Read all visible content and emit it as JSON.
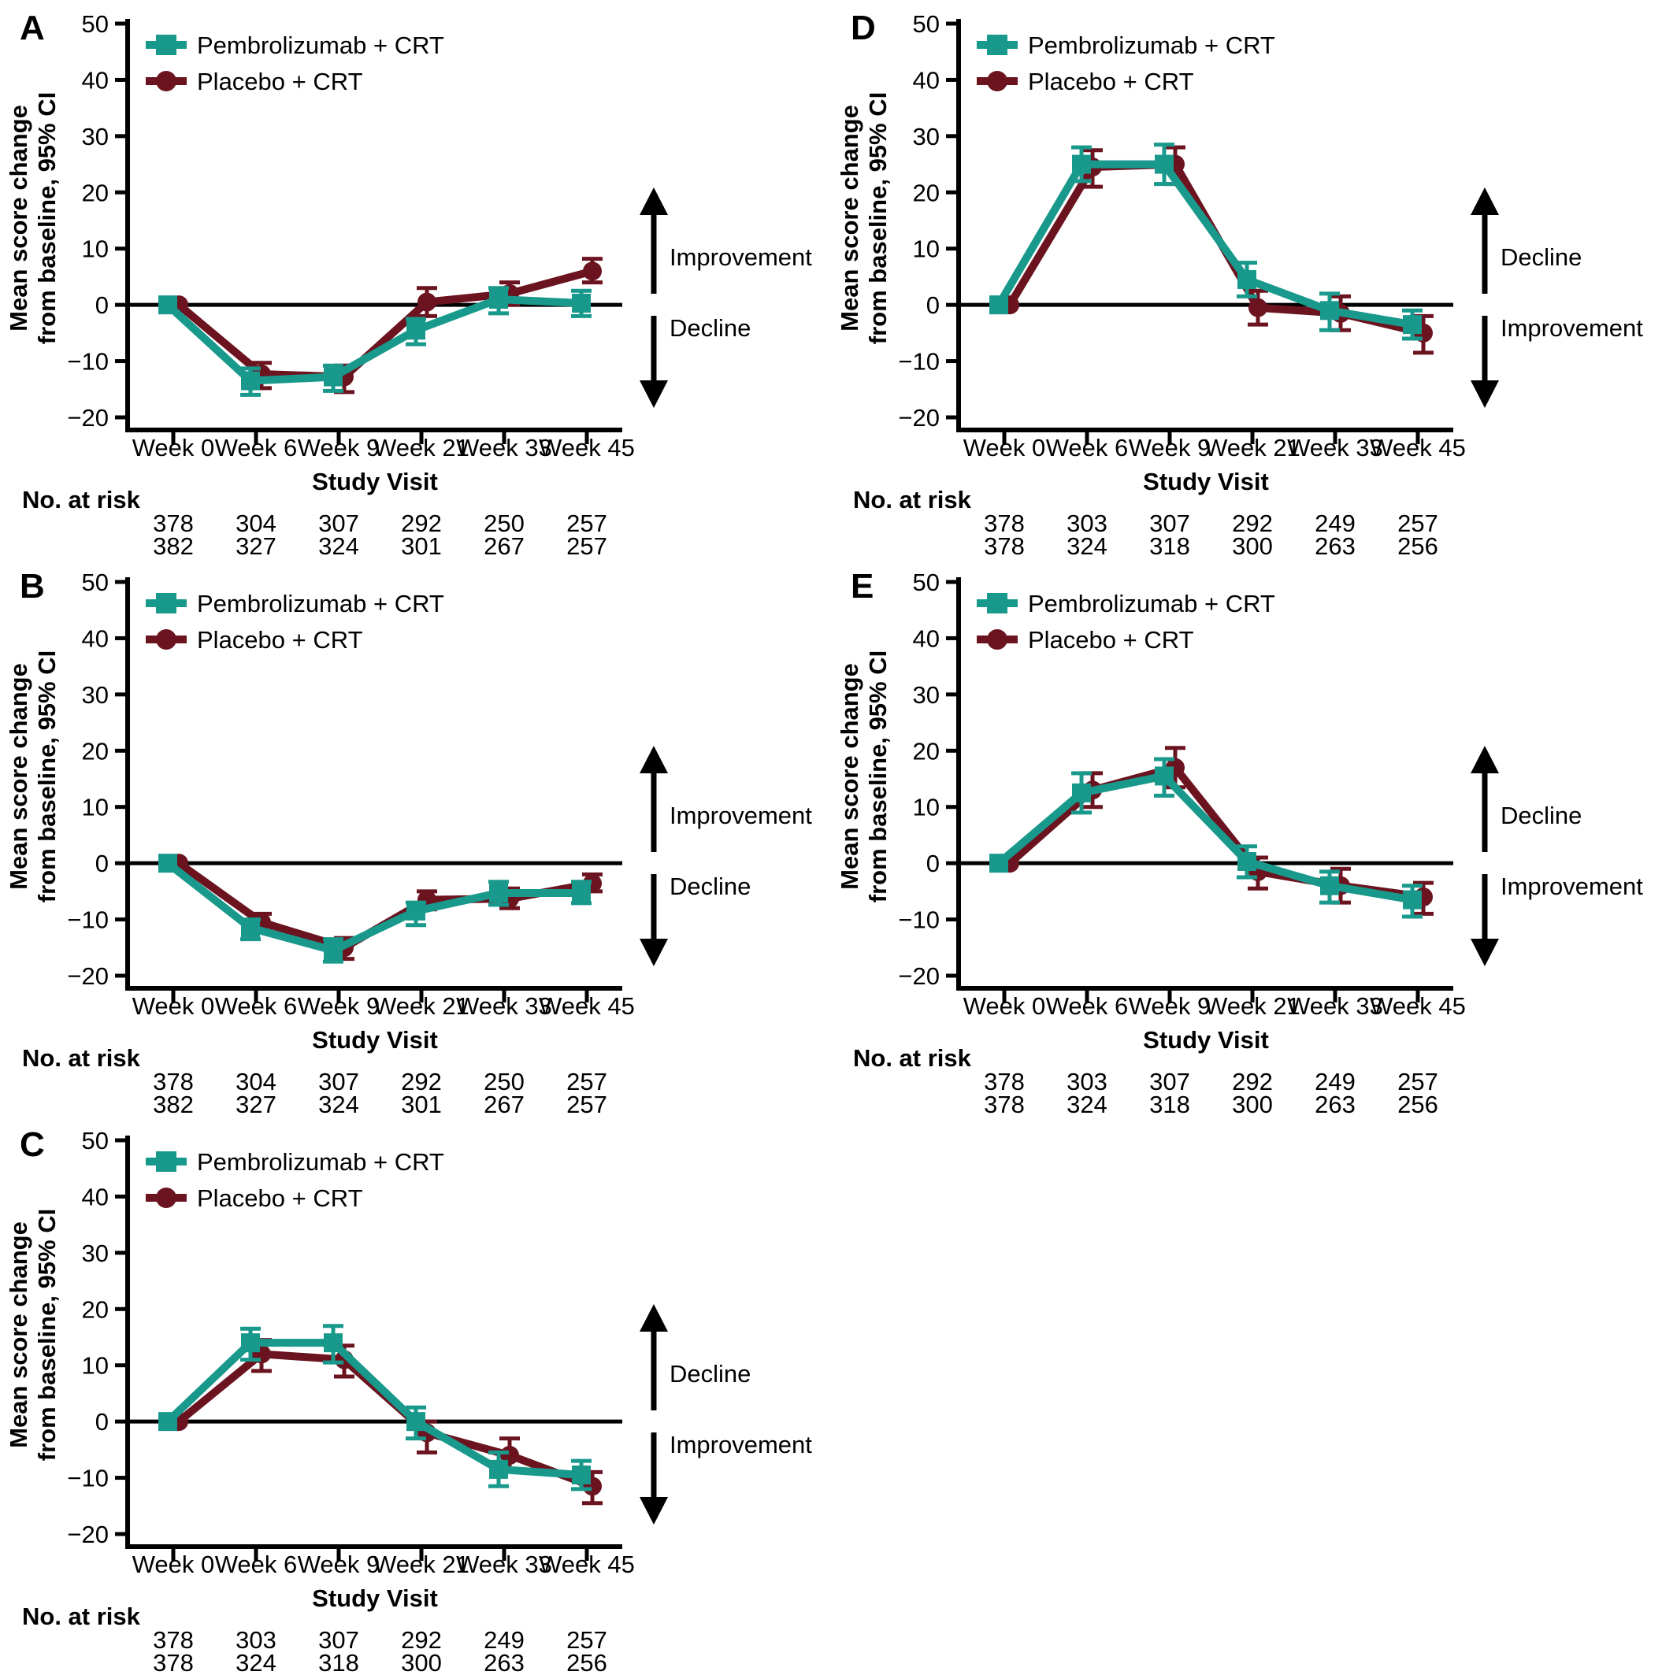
{
  "figure": {
    "ylabel_line1": "Mean score change",
    "ylabel_line2": "from baseline, 95% CI",
    "xlabel": "Study Visit",
    "no_at_risk_label": "No. at risk",
    "legend": [
      "Pembrolizumab + CRT",
      "Placebo + CRT"
    ],
    "colors": {
      "pembrolizumab": "#18998c",
      "placebo": "#6b1420",
      "axis": "#000000"
    },
    "categories": [
      "Week 0",
      "Week 6",
      "Week 9",
      "Week 21",
      "Week 33",
      "Week 45"
    ],
    "yticks": [
      50,
      40,
      30,
      20,
      10,
      0,
      -10,
      -20
    ],
    "ylim": [
      -20,
      50
    ]
  },
  "chart_data": [
    {
      "type": "line",
      "panel": "A",
      "arrow_top_label": "Improvement",
      "arrow_bottom_label": "Decline",
      "categories": [
        "Week 0",
        "Week 6",
        "Week 9",
        "Week 21",
        "Week 33",
        "Week 45"
      ],
      "ylim": [
        -20,
        50
      ],
      "series": [
        {
          "name": "Pembrolizumab + CRT",
          "marker": "square",
          "color_key": "pembrolizumab",
          "values": [
            0,
            -13.5,
            -12.8,
            -4.5,
            1,
            0.3
          ],
          "ci_low": [
            0,
            -16,
            -15.3,
            -7,
            -1.5,
            -2
          ],
          "ci_high": [
            0,
            -11.3,
            -10.8,
            -2.5,
            3,
            2.5
          ],
          "at_risk": [
            378,
            304,
            307,
            292,
            250,
            257
          ]
        },
        {
          "name": "Placebo + CRT",
          "marker": "circle",
          "color_key": "placebo",
          "values": [
            0,
            -12.3,
            -12.8,
            0.5,
            2,
            6
          ],
          "ci_low": [
            0,
            -14.8,
            -15.5,
            -2,
            0,
            4
          ],
          "ci_high": [
            0,
            -10.3,
            -10.8,
            3,
            4,
            8.2
          ],
          "at_risk": [
            382,
            327,
            324,
            301,
            267,
            257
          ]
        }
      ]
    },
    {
      "type": "line",
      "panel": "B",
      "arrow_top_label": "Improvement",
      "arrow_bottom_label": "Decline",
      "categories": [
        "Week 0",
        "Week 6",
        "Week 9",
        "Week 21",
        "Week 33",
        "Week 45"
      ],
      "ylim": [
        -20,
        50
      ],
      "series": [
        {
          "name": "Pembrolizumab + CRT",
          "marker": "square",
          "color_key": "pembrolizumab",
          "values": [
            0,
            -11.5,
            -15.5,
            -8.5,
            -5.3,
            -5.3
          ],
          "ci_low": [
            0,
            -13.5,
            -17.5,
            -11,
            -7.4,
            -7.1
          ],
          "ci_high": [
            0,
            -10,
            -13.5,
            -7,
            -3.3,
            -3.3
          ],
          "at_risk": [
            378,
            304,
            307,
            292,
            250,
            257
          ]
        },
        {
          "name": "Placebo + CRT",
          "marker": "circle",
          "color_key": "placebo",
          "values": [
            0,
            -10.5,
            -15,
            -6.5,
            -6.3,
            -3.6
          ],
          "ci_low": [
            0,
            -12,
            -17,
            -8.2,
            -8,
            -5
          ],
          "ci_high": [
            0,
            -9,
            -13.3,
            -5,
            -4.5,
            -2
          ],
          "at_risk": [
            382,
            327,
            324,
            301,
            267,
            257
          ]
        }
      ]
    },
    {
      "type": "line",
      "panel": "C",
      "arrow_top_label": "Decline",
      "arrow_bottom_label": "Improvement",
      "categories": [
        "Week 0",
        "Week 6",
        "Week 9",
        "Week 21",
        "Week 33",
        "Week 45"
      ],
      "ylim": [
        -20,
        50
      ],
      "series": [
        {
          "name": "Pembrolizumab + CRT",
          "marker": "square",
          "color_key": "pembrolizumab",
          "values": [
            0,
            14,
            14,
            0,
            -8.5,
            -9.5
          ],
          "ci_low": [
            0,
            11,
            10.5,
            -3,
            -11.5,
            -12
          ],
          "ci_high": [
            0,
            16.5,
            17,
            2.5,
            -5.5,
            -7
          ],
          "at_risk": [
            378,
            303,
            307,
            292,
            249,
            257
          ]
        },
        {
          "name": "Placebo + CRT",
          "marker": "circle",
          "color_key": "placebo",
          "values": [
            0,
            12,
            11,
            -2,
            -6,
            -11.5
          ],
          "ci_low": [
            0,
            9,
            8,
            -5.5,
            -8.5,
            -14.5
          ],
          "ci_high": [
            0,
            14.5,
            13.5,
            0,
            -3,
            -9
          ],
          "at_risk": [
            378,
            324,
            318,
            300,
            263,
            256
          ]
        }
      ]
    },
    {
      "type": "line",
      "panel": "D",
      "arrow_top_label": "Decline",
      "arrow_bottom_label": "Improvement",
      "categories": [
        "Week 0",
        "Week 6",
        "Week 9",
        "Week 21",
        "Week 33",
        "Week 45"
      ],
      "ylim": [
        -20,
        50
      ],
      "series": [
        {
          "name": "Pembrolizumab + CRT",
          "marker": "square",
          "color_key": "pembrolizumab",
          "values": [
            0,
            25,
            25,
            4.5,
            -1,
            -3.5
          ],
          "ci_low": [
            0,
            22,
            21.5,
            1.5,
            -4.5,
            -6
          ],
          "ci_high": [
            0,
            28,
            28.5,
            7.5,
            2,
            -1
          ],
          "at_risk": [
            378,
            303,
            307,
            292,
            249,
            257
          ]
        },
        {
          "name": "Placebo + CRT",
          "marker": "circle",
          "color_key": "placebo",
          "values": [
            0,
            24.5,
            25,
            -0.5,
            -1.5,
            -5
          ],
          "ci_low": [
            0,
            21,
            21.5,
            -3.5,
            -4.5,
            -8.5
          ],
          "ci_high": [
            0,
            27.5,
            28,
            2.5,
            1.5,
            -2
          ],
          "at_risk": [
            378,
            324,
            318,
            300,
            263,
            256
          ]
        }
      ]
    },
    {
      "type": "line",
      "panel": "E",
      "arrow_top_label": "Decline",
      "arrow_bottom_label": "Improvement",
      "categories": [
        "Week 0",
        "Week 6",
        "Week 9",
        "Week 21",
        "Week 33",
        "Week 45"
      ],
      "ylim": [
        -20,
        50
      ],
      "series": [
        {
          "name": "Pembrolizumab + CRT",
          "marker": "square",
          "color_key": "pembrolizumab",
          "values": [
            0,
            12.5,
            15.5,
            0.3,
            -4,
            -6.5
          ],
          "ci_low": [
            0,
            9,
            12,
            -2.5,
            -7,
            -9.5
          ],
          "ci_high": [
            0,
            16,
            18.5,
            3,
            -1.5,
            -4
          ],
          "at_risk": [
            378,
            303,
            307,
            292,
            249,
            257
          ]
        },
        {
          "name": "Placebo + CRT",
          "marker": "circle",
          "color_key": "placebo",
          "values": [
            0,
            13,
            17,
            -1.5,
            -4,
            -6
          ],
          "ci_low": [
            0,
            10,
            13.5,
            -4.5,
            -7,
            -9
          ],
          "ci_high": [
            0,
            16,
            20.5,
            1,
            -1,
            -3.5
          ],
          "at_risk": [
            378,
            324,
            318,
            300,
            263,
            256
          ]
        }
      ]
    }
  ]
}
